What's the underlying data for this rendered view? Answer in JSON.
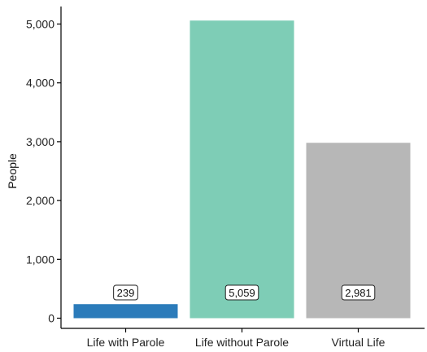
{
  "chart_data": {
    "type": "bar",
    "title": "",
    "xlabel": "",
    "ylabel": "People",
    "categories": [
      "Life with Parole",
      "Life without Parole",
      "Virtual Life"
    ],
    "values": [
      239,
      5059,
      2981
    ],
    "value_labels": [
      "239",
      "5,059",
      "2,981"
    ],
    "colors": [
      "#2b7bba",
      "#7ecdb6",
      "#b7b7b7"
    ],
    "ylim": [
      0,
      5300
    ],
    "yticks": [
      0,
      1000,
      2000,
      3000,
      4000,
      5000
    ],
    "ytick_labels": [
      "0",
      "1,000",
      "2,000",
      "3,000",
      "4,000",
      "5,000"
    ],
    "grid": false,
    "legend": "none"
  }
}
